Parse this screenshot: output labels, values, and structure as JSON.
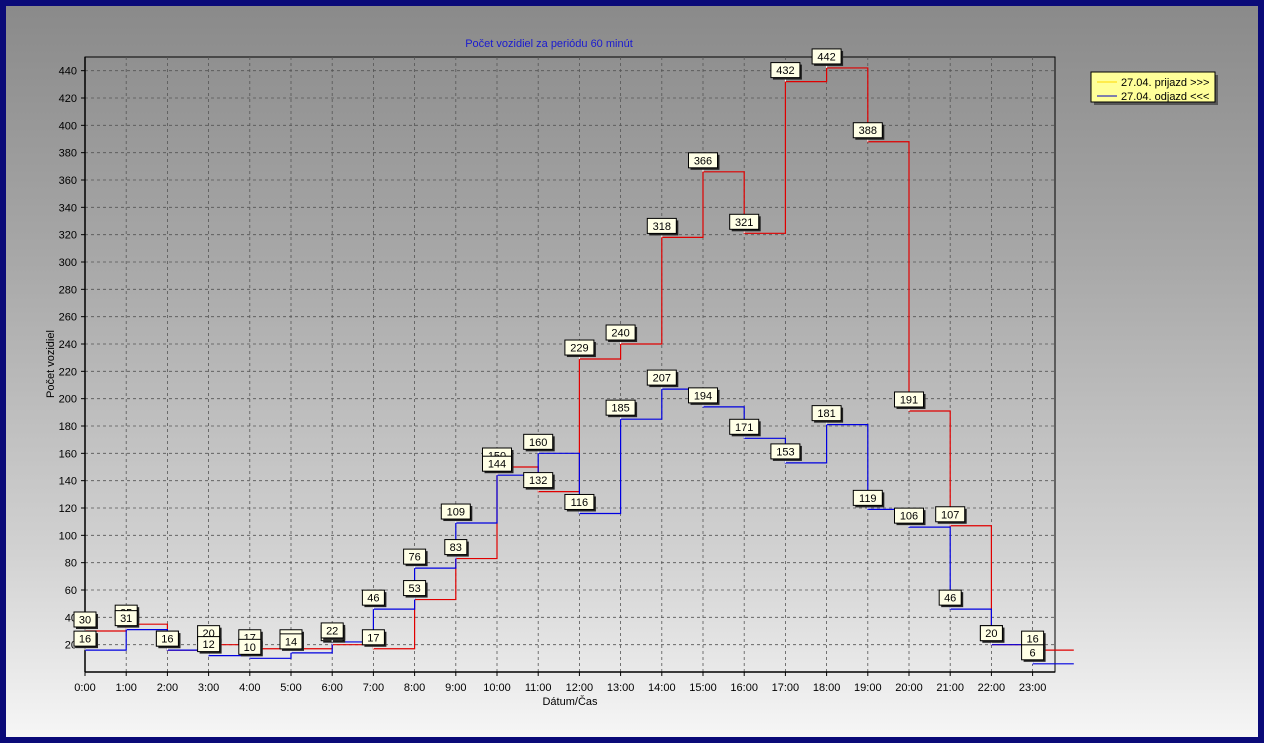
{
  "chart_data": {
    "type": "line",
    "step": true,
    "title": "Počet vozidiel za periódu 60 minút",
    "xlabel": "Dátum/Čas",
    "ylabel": "Počet vozidiel",
    "ylim": [
      0,
      450
    ],
    "y_ticks": [
      20,
      40,
      60,
      80,
      100,
      120,
      140,
      160,
      180,
      200,
      220,
      240,
      260,
      280,
      300,
      320,
      340,
      360,
      380,
      400,
      420,
      440
    ],
    "categories": [
      "0:00",
      "1:00",
      "2:00",
      "3:00",
      "4:00",
      "5:00",
      "6:00",
      "7:00",
      "8:00",
      "9:00",
      "10:00",
      "11:00",
      "12:00",
      "13:00",
      "14:00",
      "15:00",
      "16:00",
      "17:00",
      "18:00",
      "19:00",
      "20:00",
      "21:00",
      "22:00",
      "23:00"
    ],
    "grid": true,
    "legend_position": "top-right",
    "series": [
      {
        "name": "27.04.  prijazd >>>",
        "color": "#e00000",
        "legend_swatch": "#ffd800",
        "values": [
          30,
          35,
          16,
          20,
          17,
          17,
          20,
          17,
          53,
          83,
          150,
          132,
          229,
          240,
          318,
          366,
          321,
          432,
          442,
          388,
          191,
          107,
          20,
          16
        ]
      },
      {
        "name": "27.04.  odjazd <<<",
        "color": "#0000e0",
        "legend_swatch": "#0000c0",
        "values": [
          16,
          31,
          16,
          12,
          10,
          14,
          22,
          46,
          76,
          109,
          144,
          160,
          116,
          185,
          207,
          194,
          171,
          153,
          181,
          119,
          106,
          46,
          20,
          6
        ]
      }
    ]
  }
}
